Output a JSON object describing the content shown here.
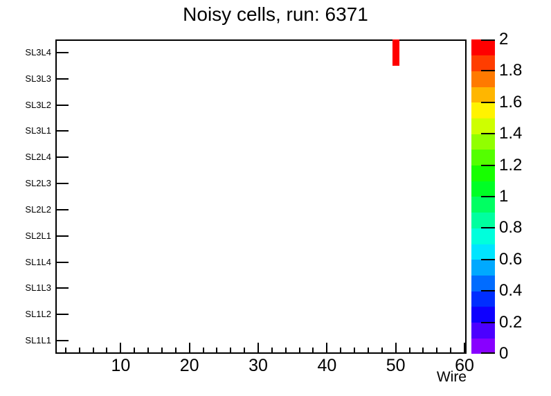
{
  "title": "Noisy cells, run: 6371",
  "chart_data": {
    "type": "heatmap",
    "title": "Noisy cells, run: 6371",
    "xlabel": "Wire",
    "ylabel": "",
    "xlim": [
      0.5,
      60.3
    ],
    "x_major_ticks": [
      10,
      20,
      30,
      40,
      50,
      60
    ],
    "x_major_tick_labels": [
      "10",
      "20",
      "30",
      "40",
      "50",
      "60"
    ],
    "x_minor_tick_step": 2,
    "rows_top_to_bottom": [
      "SL3L4",
      "SL3L3",
      "SL3L2",
      "SL3L1",
      "SL2L4",
      "SL2L3",
      "SL2L2",
      "SL2L1",
      "SL1L4",
      "SL1L3",
      "SL1L2",
      "SL1L1"
    ],
    "zlim": [
      0,
      2
    ],
    "z_tick_labels": [
      "0",
      "0.2",
      "0.4",
      "0.6",
      "0.8",
      "1",
      "1.2",
      "1.4",
      "1.6",
      "1.8",
      "2"
    ],
    "palette_bottom_to_top": [
      "#8800FF",
      "#4B00FF",
      "#0E00FF",
      "#002EFF",
      "#006CFF",
      "#00A9FF",
      "#00E5FF",
      "#00FFDC",
      "#00FF9F",
      "#00FF62",
      "#00FF25",
      "#17FF00",
      "#54FF00",
      "#91FF00",
      "#CEFF00",
      "#FFF300",
      "#FFB600",
      "#FF7A00",
      "#FF3D00",
      "#FF0000"
    ],
    "grid": false,
    "legend_position": "colorbar-right",
    "cells": [
      {
        "row": "SL3L4",
        "wire": 50,
        "wire_from": 49.5,
        "wire_to": 50.5,
        "value": 2,
        "color": "#FF0000"
      }
    ],
    "frame_color": "#000000",
    "background_color": "#FFFFFF"
  }
}
